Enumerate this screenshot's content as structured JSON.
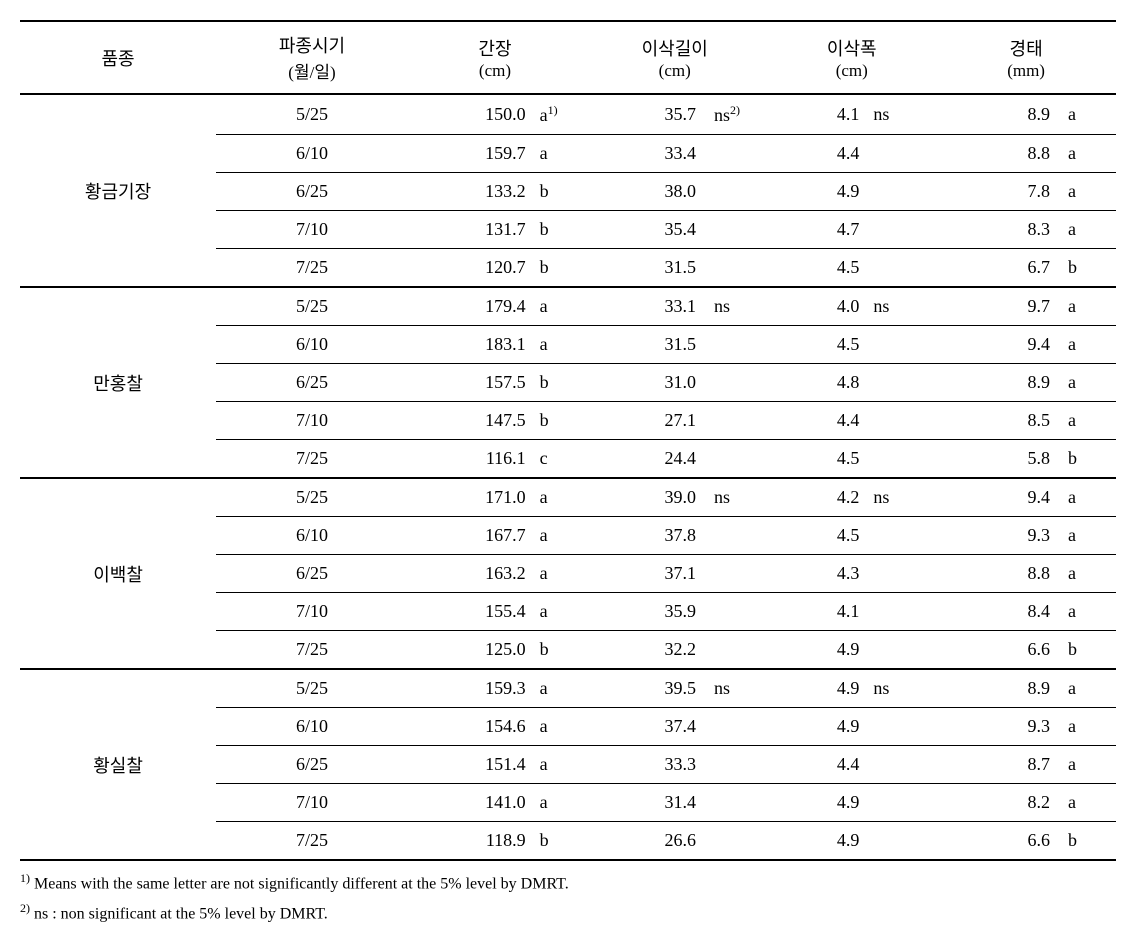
{
  "table": {
    "headers": {
      "variety": {
        "label": "품종",
        "sub": ""
      },
      "date": {
        "label": "파종시기",
        "sub": "(월/일)"
      },
      "culm": {
        "label": "간장",
        "sub": "(cm)"
      },
      "ear_length": {
        "label": "이삭길이",
        "sub": "(cm)"
      },
      "ear_width": {
        "label": "이삭폭",
        "sub": "(cm)"
      },
      "stem": {
        "label": "경태",
        "sub": "(mm)"
      }
    },
    "groups": [
      {
        "variety": "황금기장",
        "rows": [
          {
            "date": "5/25",
            "culm_v": "150.0",
            "culm_s": "a",
            "culm_sup": "1)",
            "ear_v": "35.7",
            "ear_s": "ns",
            "ear_sup": "2)",
            "width_v": "4.1",
            "width_s": "ns",
            "stem_v": "8.9",
            "stem_s": "a"
          },
          {
            "date": "6/10",
            "culm_v": "159.7",
            "culm_s": "a",
            "ear_v": "33.4",
            "ear_s": "",
            "width_v": "4.4",
            "width_s": "",
            "stem_v": "8.8",
            "stem_s": "a"
          },
          {
            "date": "6/25",
            "culm_v": "133.2",
            "culm_s": "b",
            "ear_v": "38.0",
            "ear_s": "",
            "width_v": "4.9",
            "width_s": "",
            "stem_v": "7.8",
            "stem_s": "a"
          },
          {
            "date": "7/10",
            "culm_v": "131.7",
            "culm_s": "b",
            "ear_v": "35.4",
            "ear_s": "",
            "width_v": "4.7",
            "width_s": "",
            "stem_v": "8.3",
            "stem_s": "a"
          },
          {
            "date": "7/25",
            "culm_v": "120.7",
            "culm_s": "b",
            "ear_v": "31.5",
            "ear_s": "",
            "width_v": "4.5",
            "width_s": "",
            "stem_v": "6.7",
            "stem_s": "b"
          }
        ]
      },
      {
        "variety": "만홍찰",
        "rows": [
          {
            "date": "5/25",
            "culm_v": "179.4",
            "culm_s": "a",
            "ear_v": "33.1",
            "ear_s": "ns",
            "width_v": "4.0",
            "width_s": "ns",
            "stem_v": "9.7",
            "stem_s": "a"
          },
          {
            "date": "6/10",
            "culm_v": "183.1",
            "culm_s": "a",
            "ear_v": "31.5",
            "ear_s": "",
            "width_v": "4.5",
            "width_s": "",
            "stem_v": "9.4",
            "stem_s": "a"
          },
          {
            "date": "6/25",
            "culm_v": "157.5",
            "culm_s": "b",
            "ear_v": "31.0",
            "ear_s": "",
            "width_v": "4.8",
            "width_s": "",
            "stem_v": "8.9",
            "stem_s": "a"
          },
          {
            "date": "7/10",
            "culm_v": "147.5",
            "culm_s": "b",
            "ear_v": "27.1",
            "ear_s": "",
            "width_v": "4.4",
            "width_s": "",
            "stem_v": "8.5",
            "stem_s": "a"
          },
          {
            "date": "7/25",
            "culm_v": "116.1",
            "culm_s": "c",
            "ear_v": "24.4",
            "ear_s": "",
            "width_v": "4.5",
            "width_s": "",
            "stem_v": "5.8",
            "stem_s": "b"
          }
        ]
      },
      {
        "variety": "이백찰",
        "rows": [
          {
            "date": "5/25",
            "culm_v": "171.0",
            "culm_s": "a",
            "ear_v": "39.0",
            "ear_s": "ns",
            "width_v": "4.2",
            "width_s": "ns",
            "stem_v": "9.4",
            "stem_s": "a"
          },
          {
            "date": "6/10",
            "culm_v": "167.7",
            "culm_s": "a",
            "ear_v": "37.8",
            "ear_s": "",
            "width_v": "4.5",
            "width_s": "",
            "stem_v": "9.3",
            "stem_s": "a"
          },
          {
            "date": "6/25",
            "culm_v": "163.2",
            "culm_s": "a",
            "ear_v": "37.1",
            "ear_s": "",
            "width_v": "4.3",
            "width_s": "",
            "stem_v": "8.8",
            "stem_s": "a"
          },
          {
            "date": "7/10",
            "culm_v": "155.4",
            "culm_s": "a",
            "ear_v": "35.9",
            "ear_s": "",
            "width_v": "4.1",
            "width_s": "",
            "stem_v": "8.4",
            "stem_s": "a"
          },
          {
            "date": "7/25",
            "culm_v": "125.0",
            "culm_s": "b",
            "ear_v": "32.2",
            "ear_s": "",
            "width_v": "4.9",
            "width_s": "",
            "stem_v": "6.6",
            "stem_s": "b"
          }
        ]
      },
      {
        "variety": "황실찰",
        "rows": [
          {
            "date": "5/25",
            "culm_v": "159.3",
            "culm_s": "a",
            "ear_v": "39.5",
            "ear_s": "ns",
            "width_v": "4.9",
            "width_s": "ns",
            "stem_v": "8.9",
            "stem_s": "a"
          },
          {
            "date": "6/10",
            "culm_v": "154.6",
            "culm_s": "a",
            "ear_v": "37.4",
            "ear_s": "",
            "width_v": "4.9",
            "width_s": "",
            "stem_v": "9.3",
            "stem_s": "a"
          },
          {
            "date": "6/25",
            "culm_v": "151.4",
            "culm_s": "a",
            "ear_v": "33.3",
            "ear_s": "",
            "width_v": "4.4",
            "width_s": "",
            "stem_v": "8.7",
            "stem_s": "a"
          },
          {
            "date": "7/10",
            "culm_v": "141.0",
            "culm_s": "a",
            "ear_v": "31.4",
            "ear_s": "",
            "width_v": "4.9",
            "width_s": "",
            "stem_v": "8.2",
            "stem_s": "a"
          },
          {
            "date": "7/25",
            "culm_v": "118.9",
            "culm_s": "b",
            "ear_v": "26.6",
            "ear_s": "",
            "width_v": "4.9",
            "width_s": "",
            "stem_v": "6.6",
            "stem_s": "b"
          }
        ]
      }
    ]
  },
  "footnotes": {
    "f1_sup": "1)",
    "f1_text": " Means with the same letter are not significantly different at the 5% level by DMRT.",
    "f2_sup": "2)",
    "f2_text": " ns : non significant at the 5% level by DMRT."
  }
}
